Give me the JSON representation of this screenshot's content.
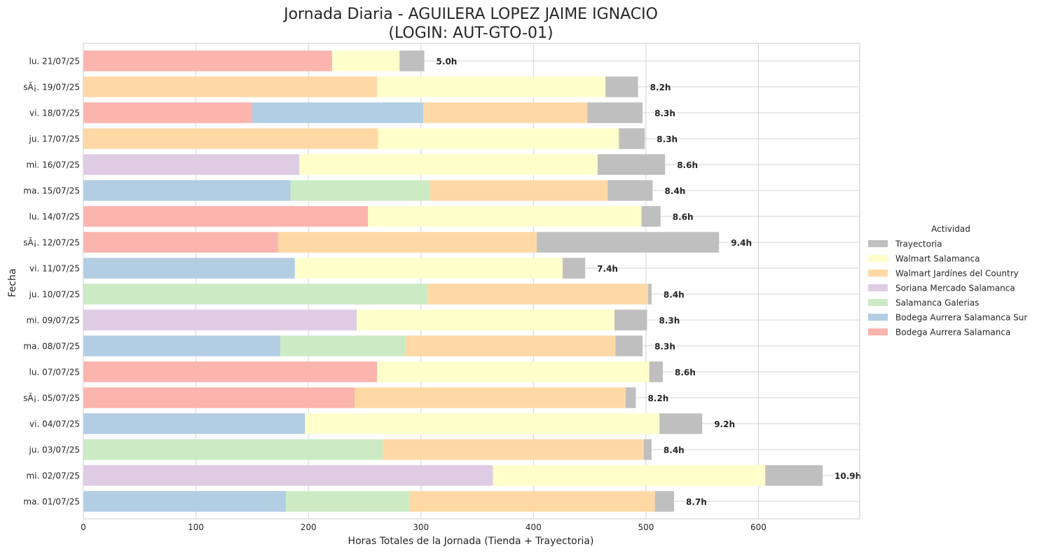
{
  "chart_data": {
    "type": "bar",
    "orientation": "horizontal",
    "stacked": true,
    "title_line1": "Jornada Diaria - AGUILERA LOPEZ JAIME IGNACIO",
    "title_line2": "(LOGIN: AUT-GTO-01)",
    "xlabel": "Horas Totales de la Jornada (Tienda + Trayectoria)",
    "ylabel": "Fecha",
    "xlim": [
      0,
      690
    ],
    "xticks": [
      0,
      100,
      200,
      300,
      400,
      500,
      600
    ],
    "grid": true,
    "legend": {
      "title": "Actividad",
      "position": "center-right"
    },
    "categories": [
      "lu. 21/07/25",
      "sÃ¡. 19/07/25",
      "vi. 18/07/25",
      "ju. 17/07/25",
      "mi. 16/07/25",
      "ma. 15/07/25",
      "lu. 14/07/25",
      "sÃ¡. 12/07/25",
      "vi. 11/07/25",
      "ju. 10/07/25",
      "mi. 09/07/25",
      "ma. 08/07/25",
      "lu. 07/07/25",
      "sÃ¡. 05/07/25",
      "vi. 04/07/25",
      "ju. 03/07/25",
      "mi. 02/07/25",
      "ma. 01/07/25"
    ],
    "stack_order": [
      "Bodega Aurrera Salamanca",
      "Bodega Aurrera Salamanca Sur",
      "Salamanca Galerias",
      "Soriana Mercado Salamanca",
      "Walmart Jardínes del Country",
      "Walmart Salamanca",
      "Trayectoria"
    ],
    "legend_order": [
      "Trayectoria",
      "Walmart Salamanca",
      "Walmart Jardínes del Country",
      "Soriana Mercado Salamanca",
      "Salamanca Galerias",
      "Bodega Aurrera Salamanca Sur",
      "Bodega Aurrera Salamanca"
    ],
    "colors": {
      "Bodega Aurrera Salamanca": "#fbb4ae",
      "Bodega Aurrera Salamanca Sur": "#b3cde3",
      "Salamanca Galerias": "#ccebc5",
      "Soriana Mercado Salamanca": "#decbe4",
      "Walmart Jardínes del Country": "#fed9a6",
      "Walmart Salamanca": "#ffffcc",
      "Trayectoria": "#bfbfbf"
    },
    "series": [
      {
        "name": "Bodega Aurrera Salamanca",
        "values": [
          221,
          0,
          150,
          0,
          0,
          0,
          253,
          173,
          0,
          0,
          0,
          0,
          261,
          241,
          0,
          0,
          0,
          0
        ]
      },
      {
        "name": "Bodega Aurrera Salamanca Sur",
        "values": [
          0,
          0,
          152,
          0,
          0,
          184,
          0,
          0,
          188,
          0,
          0,
          175,
          0,
          0,
          197,
          0,
          0,
          180
        ]
      },
      {
        "name": "Salamanca Galerias",
        "values": [
          0,
          0,
          0,
          0,
          0,
          124,
          0,
          0,
          0,
          306,
          0,
          111,
          0,
          0,
          0,
          266,
          0,
          110
        ]
      },
      {
        "name": "Soriana Mercado Salamanca",
        "values": [
          0,
          0,
          0,
          0,
          192,
          0,
          0,
          0,
          0,
          0,
          243,
          0,
          0,
          0,
          0,
          0,
          364,
          0
        ]
      },
      {
        "name": "Walmart Jardínes del Country",
        "values": [
          0,
          261,
          146,
          262,
          0,
          158,
          0,
          230,
          0,
          196,
          0,
          187,
          0,
          241,
          0,
          232,
          0,
          218
        ]
      },
      {
        "name": "Walmart Salamanca",
        "values": [
          60,
          203,
          0,
          214,
          265,
          0,
          243,
          0,
          238,
          0,
          229,
          0,
          242,
          0,
          315,
          0,
          242,
          0
        ]
      },
      {
        "name": "Trayectoria",
        "values": [
          22,
          29,
          49,
          23,
          60,
          40,
          17,
          162,
          20,
          3,
          29,
          24,
          12,
          9,
          38,
          7,
          51,
          17
        ]
      }
    ],
    "data_labels": [
      "5.0h",
      "8.2h",
      "8.3h",
      "8.3h",
      "8.6h",
      "8.4h",
      "8.6h",
      "9.4h",
      "7.4h",
      "8.4h",
      "8.3h",
      "8.3h",
      "8.6h",
      "8.2h",
      "9.2h",
      "8.4h",
      "10.9h",
      "8.7h"
    ]
  }
}
